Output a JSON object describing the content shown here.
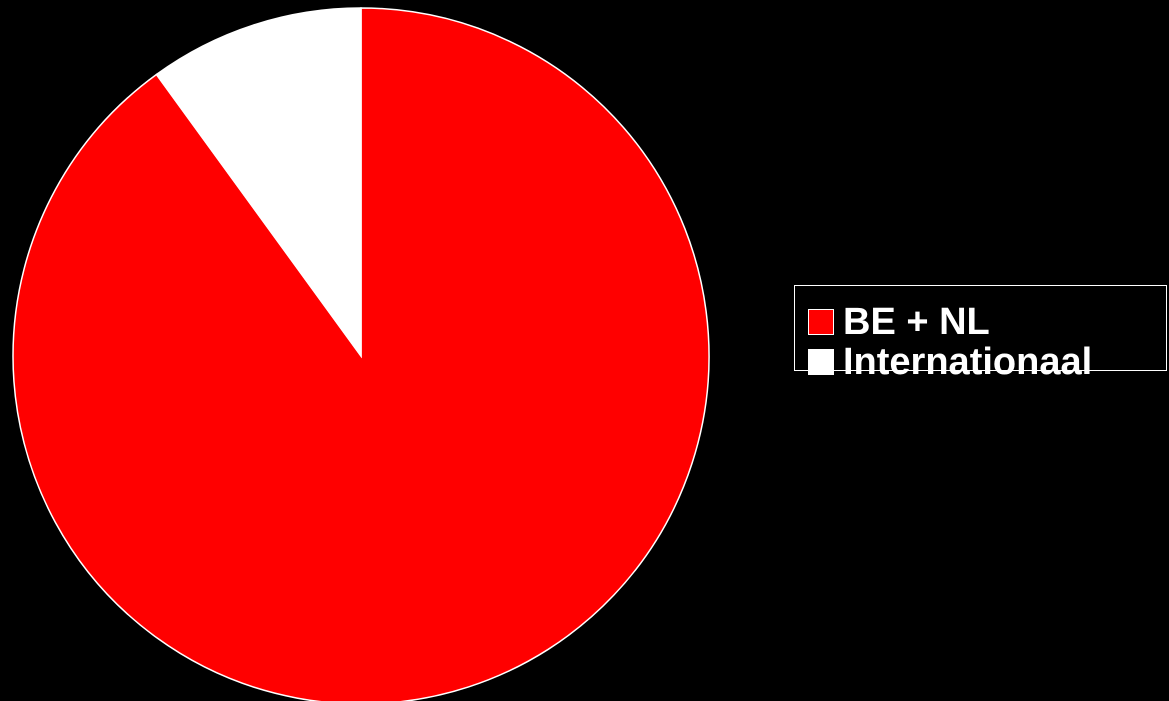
{
  "chart_data": {
    "type": "pie",
    "title": "",
    "slices": [
      {
        "label": "BE + NL",
        "value": 90,
        "color": "#ff0000"
      },
      {
        "label": "Internationaal",
        "value": 10,
        "color": "#ffffff"
      }
    ],
    "start_angle_deg": 0,
    "direction": "clockwise",
    "legend_position": "right"
  }
}
